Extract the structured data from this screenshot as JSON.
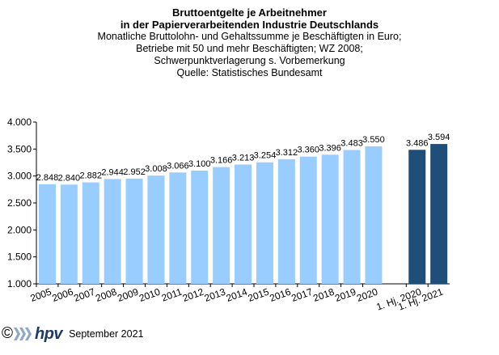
{
  "chart_data": {
    "type": "bar",
    "title_lines": [
      "Bruttoentgelte  je Arbeitnehmer",
      "in der Papierverarbeitenden Industrie Deutschlands"
    ],
    "subtitle_lines": [
      "Monatliche Bruttolohn-  und  Gehaltssumme  je Beschäftigten  in Euro;",
      "Betriebe  mit 50 und mehr Beschäftigten;  WZ 2008;",
      "Schwerpunktverlagerung   s. Vorbemerkung",
      "Quelle:  Statistisches Bundesamt"
    ],
    "categories": [
      "2005",
      "2006",
      "2007",
      "2008",
      "2009",
      "2010",
      "2011",
      "2012",
      "2013",
      "2014",
      "2015",
      "2016",
      "2017",
      "2018",
      "2019",
      "2020",
      "1. Hj. 2020",
      "1. Hj. 2021"
    ],
    "values": [
      2848,
      2840,
      2882,
      2944,
      2952,
      3008,
      3066,
      3100,
      3166,
      3213,
      3254,
      3312,
      3360,
      3396,
      3483,
      3550,
      3486,
      3594
    ],
    "value_labels": [
      "2.848",
      "2.840",
      "2.882",
      "2.944",
      "2.952",
      "3.008",
      "3.066",
      "3.100",
      "3.166",
      "3.213",
      "3.254",
      "3.312",
      "3.360",
      "3.396",
      "3.483",
      "3.550",
      "3.486",
      "3.594"
    ],
    "bar_colors": [
      "#99ccff",
      "#99ccff",
      "#99ccff",
      "#99ccff",
      "#99ccff",
      "#99ccff",
      "#99ccff",
      "#99ccff",
      "#99ccff",
      "#99ccff",
      "#99ccff",
      "#99ccff",
      "#99ccff",
      "#99ccff",
      "#99ccff",
      "#99ccff",
      "#1f4e79",
      "#1f4e79"
    ],
    "ylim": [
      1000,
      4000
    ],
    "yticks": [
      1000,
      1500,
      2000,
      2500,
      3000,
      3500,
      4000
    ],
    "ytick_labels": [
      "1.000",
      "1.500",
      "2.000",
      "2.500",
      "3.000",
      "3.500",
      "4.000"
    ],
    "xlabel": "",
    "ylabel": "",
    "grid": false
  },
  "footer": {
    "copyright": "©",
    "logo_text": "hpv",
    "date": "September 2021"
  }
}
